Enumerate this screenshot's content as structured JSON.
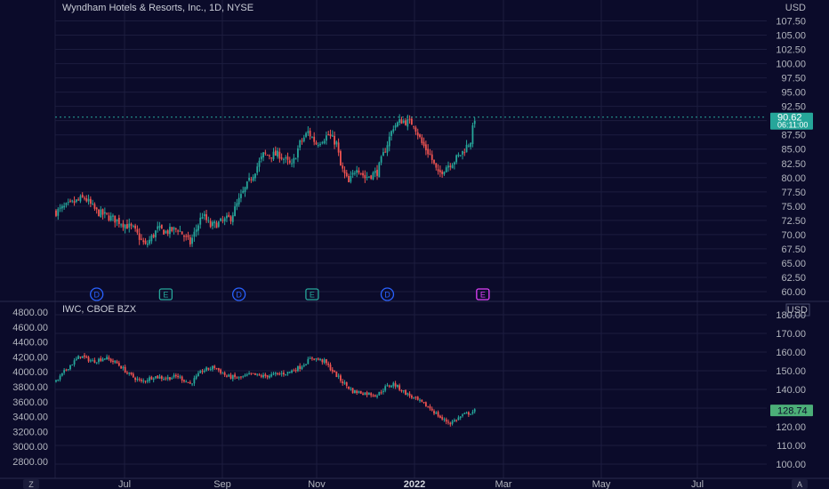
{
  "colors": {
    "background": "#0b0b2a",
    "grid": "#1c1d3f",
    "up": "#26a69a",
    "down": "#ef5350",
    "text": "#b2b5be",
    "dividend": "#2962ff",
    "earnings": "#26a69a",
    "earnings_next": "#e040fb",
    "badge_top": "#26a69a",
    "badge_bottom": "#4caf78"
  },
  "chart_data": [
    {
      "type": "candlestick",
      "title": "Wyndham Hotels & Resorts, Inc., 1D, NYSE",
      "currency": "USD",
      "ylim": [
        60,
        110
      ],
      "y_ticks": [
        "107.50",
        "105.00",
        "102.50",
        "100.00",
        "97.50",
        "95.00",
        "92.50",
        "90.00",
        "87.50",
        "85.00",
        "82.50",
        "80.00",
        "77.50",
        "75.00",
        "72.50",
        "70.00",
        "67.50",
        "65.00",
        "62.50",
        "60.00"
      ],
      "x_ticks": [
        "Jul",
        "Sep",
        "Nov",
        "2022",
        "Mar",
        "May",
        "Jul"
      ],
      "last_price": "90.62",
      "countdown": "06:11:00",
      "close_anchors": [
        {
          "x": 0,
          "y": 74.0
        },
        {
          "x": 8,
          "y": 75.5
        },
        {
          "x": 14,
          "y": 76.5
        },
        {
          "x": 20,
          "y": 74.0
        },
        {
          "x": 30,
          "y": 72.5
        },
        {
          "x": 38,
          "y": 71.0
        },
        {
          "x": 44,
          "y": 68.0
        },
        {
          "x": 50,
          "y": 71.0
        },
        {
          "x": 54,
          "y": 70.5
        },
        {
          "x": 60,
          "y": 71.0
        },
        {
          "x": 66,
          "y": 68.5
        },
        {
          "x": 72,
          "y": 73.5
        },
        {
          "x": 76,
          "y": 71.5
        },
        {
          "x": 80,
          "y": 72.0
        },
        {
          "x": 86,
          "y": 73.0
        },
        {
          "x": 90,
          "y": 76.0
        },
        {
          "x": 96,
          "y": 80.0
        },
        {
          "x": 102,
          "y": 84.0
        },
        {
          "x": 110,
          "y": 84.0
        },
        {
          "x": 116,
          "y": 82.0
        },
        {
          "x": 120,
          "y": 86.0
        },
        {
          "x": 124,
          "y": 88.0
        },
        {
          "x": 128,
          "y": 86.0
        },
        {
          "x": 134,
          "y": 87.5
        },
        {
          "x": 138,
          "y": 86.0
        },
        {
          "x": 140,
          "y": 82.0
        },
        {
          "x": 144,
          "y": 79.0
        },
        {
          "x": 148,
          "y": 82.0
        },
        {
          "x": 152,
          "y": 80.0
        },
        {
          "x": 158,
          "y": 81.0
        },
        {
          "x": 162,
          "y": 85.0
        },
        {
          "x": 166,
          "y": 89.0
        },
        {
          "x": 170,
          "y": 90.0
        },
        {
          "x": 176,
          "y": 89.5
        },
        {
          "x": 180,
          "y": 86.0
        },
        {
          "x": 184,
          "y": 84.0
        },
        {
          "x": 188,
          "y": 80.5
        },
        {
          "x": 192,
          "y": 82.0
        },
        {
          "x": 196,
          "y": 83.0
        },
        {
          "x": 200,
          "y": 84.5
        },
        {
          "x": 204,
          "y": 86.5
        },
        {
          "x": 206,
          "y": 90.5
        }
      ],
      "markers": [
        {
          "label": "D",
          "x": 20,
          "kind": "dividend"
        },
        {
          "label": "E",
          "x": 54,
          "kind": "earnings"
        },
        {
          "label": "D",
          "x": 90,
          "kind": "dividend"
        },
        {
          "label": "E",
          "x": 126,
          "kind": "earnings"
        },
        {
          "label": "D",
          "x": 163,
          "kind": "dividend"
        },
        {
          "label": "E",
          "x": 210,
          "kind": "earnings_next"
        }
      ]
    },
    {
      "type": "candlestick",
      "title": "IWC, CBOE BZX",
      "currency": "USD",
      "ylim": [
        95,
        185
      ],
      "y_ticks": [
        "180.00",
        "170.00",
        "160.00",
        "150.00",
        "140.00",
        "130.00",
        "120.00",
        "110.00",
        "100.00"
      ],
      "left_axis_ticks": [
        "4800.00",
        "4600.00",
        "4400.00",
        "4200.00",
        "4000.00",
        "3800.00",
        "3600.00",
        "3400.00",
        "3200.00",
        "3000.00",
        "2800.00"
      ],
      "last_price": "128.74",
      "close_anchors": [
        {
          "x": 0,
          "y": 144.0
        },
        {
          "x": 6,
          "y": 152.0
        },
        {
          "x": 12,
          "y": 158.0
        },
        {
          "x": 18,
          "y": 155.0
        },
        {
          "x": 24,
          "y": 157.0
        },
        {
          "x": 30,
          "y": 154.0
        },
        {
          "x": 36,
          "y": 148.0
        },
        {
          "x": 42,
          "y": 144.0
        },
        {
          "x": 48,
          "y": 147.0
        },
        {
          "x": 54,
          "y": 146.0
        },
        {
          "x": 60,
          "y": 147.0
        },
        {
          "x": 66,
          "y": 143.0
        },
        {
          "x": 72,
          "y": 150.0
        },
        {
          "x": 78,
          "y": 152.0
        },
        {
          "x": 84,
          "y": 147.0
        },
        {
          "x": 90,
          "y": 146.0
        },
        {
          "x": 96,
          "y": 148.0
        },
        {
          "x": 102,
          "y": 147.0
        },
        {
          "x": 108,
          "y": 148.0
        },
        {
          "x": 114,
          "y": 149.0
        },
        {
          "x": 120,
          "y": 152.0
        },
        {
          "x": 126,
          "y": 157.0
        },
        {
          "x": 132,
          "y": 155.0
        },
        {
          "x": 136,
          "y": 150.0
        },
        {
          "x": 140,
          "y": 145.0
        },
        {
          "x": 146,
          "y": 139.0
        },
        {
          "x": 152,
          "y": 138.0
        },
        {
          "x": 158,
          "y": 137.0
        },
        {
          "x": 162,
          "y": 141.0
        },
        {
          "x": 166,
          "y": 143.0
        },
        {
          "x": 172,
          "y": 138.0
        },
        {
          "x": 178,
          "y": 134.0
        },
        {
          "x": 184,
          "y": 130.0
        },
        {
          "x": 190,
          "y": 124.0
        },
        {
          "x": 194,
          "y": 122.0
        },
        {
          "x": 200,
          "y": 126.0
        },
        {
          "x": 206,
          "y": 128.5
        }
      ]
    }
  ],
  "bottom_bar": {
    "left_button": "Z",
    "right_button": "A"
  }
}
